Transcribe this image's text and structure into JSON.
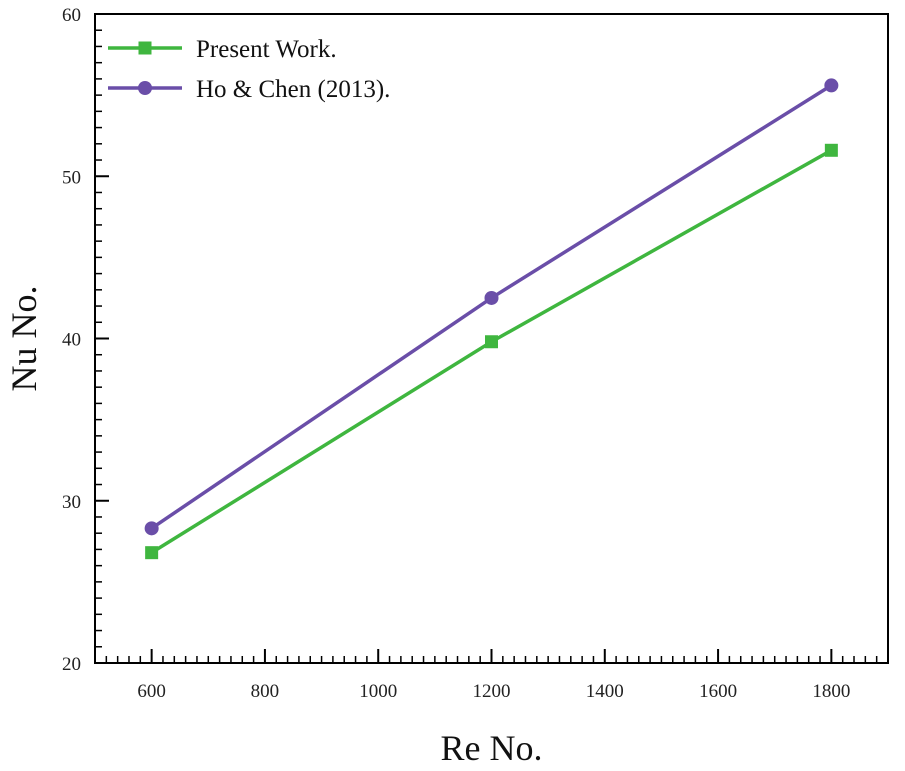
{
  "chart_data": {
    "type": "line",
    "title": "",
    "xlabel": "Re No.",
    "ylabel": "Nu No.",
    "xlim": [
      500,
      1900
    ],
    "ylim": [
      20,
      60
    ],
    "x_ticks": [
      600,
      800,
      1000,
      1200,
      1400,
      1600,
      1800
    ],
    "y_ticks": [
      20,
      30,
      40,
      50,
      60
    ],
    "grid": false,
    "legend_position": "top-left",
    "series": [
      {
        "name": "Present Work.",
        "color": "#3fb63f",
        "marker": "square",
        "x": [
          600,
          1200,
          1800
        ],
        "y": [
          26.8,
          39.8,
          51.6
        ]
      },
      {
        "name": "Ho & Chen (2013).",
        "color": "#6a4ea8",
        "marker": "circle",
        "x": [
          600,
          1200,
          1800
        ],
        "y": [
          28.3,
          42.5,
          55.6
        ]
      }
    ]
  }
}
